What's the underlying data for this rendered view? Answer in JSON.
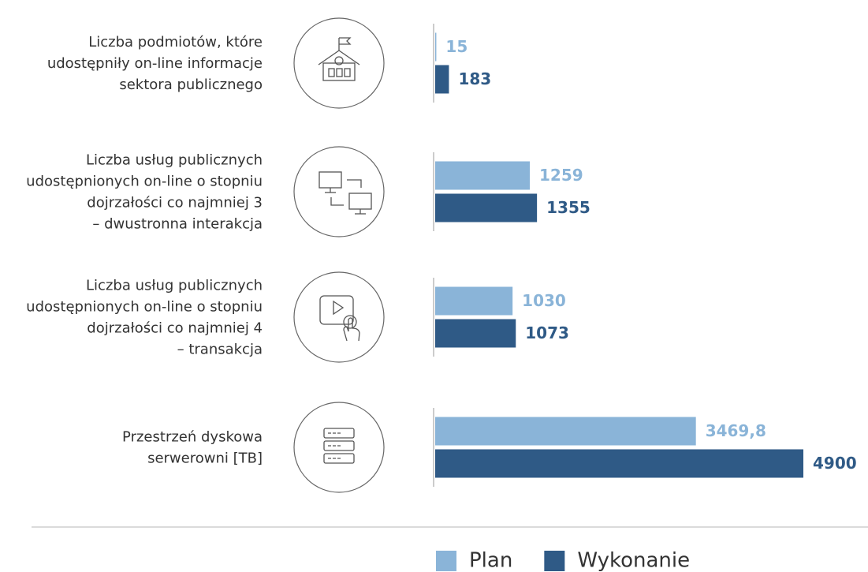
{
  "chart_data": {
    "type": "bar",
    "orientation": "horizontal",
    "categories": [
      "Liczba podmiotów, które\nudostępniły on-line informacje\nsektora publicznego",
      "Liczba usług publicznych\nudostępnionych on-line o stopniu\ndojrzałości co najmniej 3\n– dwustronna interakcja",
      "Liczba usług publicznych\nudostępnionych on-line o stopniu\ndojrzałości co najmniej 4\n– transakcja",
      "Przestrzeń dyskowa\nserwerowni [TB]"
    ],
    "series": [
      {
        "name": "Plan",
        "color": "#8ab4d8",
        "values": [
          15,
          1259,
          1030,
          3469.8
        ],
        "value_labels": [
          "15",
          "1259",
          "1030",
          "3469,8"
        ]
      },
      {
        "name": "Wykonanie",
        "color": "#2f5a86",
        "values": [
          183,
          1355,
          1073,
          4900
        ],
        "value_labels": [
          "183",
          "1355",
          "1073",
          "4900"
        ]
      }
    ],
    "legend": "bottom"
  }
}
